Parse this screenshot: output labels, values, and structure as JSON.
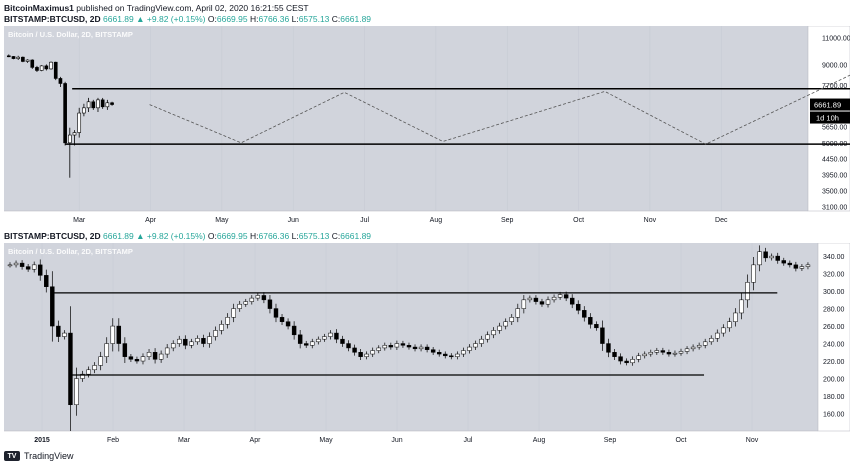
{
  "header": {
    "publisher_line": {
      "author": "BitcoinMaximus1",
      "text": "published on TradingView.com, April 02, 2020 16:21:55 CEST"
    },
    "quote_line": {
      "symbol": "BITSTAMP:BTCUSD, 2D",
      "price": "6661.89",
      "change": "▲ +9.82 (+0.15%)",
      "o_label": "O:",
      "o": "6669.95",
      "h_label": "H:",
      "h": "6766.36",
      "l_label": "L:",
      "l": "6575.13",
      "c_label": "C:",
      "c": "6661.89"
    }
  },
  "panel2_header": {
    "symbol": "BITSTAMP:BTCUSD, 2D",
    "price": "6661.89",
    "change": "▲ +9.82 (+0.15%)",
    "o_label": "O:",
    "o": "6669.95",
    "h_label": "H:",
    "h": "6766.36",
    "l_label": "L:",
    "l": "6575.13",
    "c_label": "C:",
    "c": "6661.89"
  },
  "footer": {
    "brand": "TradingView"
  },
  "colors": {
    "pane_bg": "#d1d4dc",
    "axis_bg": "#ffffff",
    "candle_up": "#ffffff",
    "candle_down": "#000000",
    "grid": "#c2c6cf"
  },
  "chart_data": [
    {
      "type": "candlestick",
      "title": "Bitcoin / U.S. Dollar, 2D, BITSTAMP",
      "y_ticks": [
        "11000.00",
        "9000.00",
        "7700.00",
        "6661.89",
        "5650.00",
        "5000.00",
        "4450.00",
        "3950.00",
        "3500.00",
        "3100.00"
      ],
      "x_ticks": [
        "Mar",
        "Apr",
        "May",
        "Jun",
        "Jul",
        "Aug",
        "Sep",
        "Oct",
        "Nov",
        "Dec"
      ],
      "price_label": "6661.89",
      "countdown_label": "1d 10h",
      "y_scale": "log",
      "ylim": [
        3000,
        12000
      ],
      "candles": [
        [
          9600,
          9700,
          9500,
          9550
        ],
        [
          9550,
          9580,
          9350,
          9400
        ],
        [
          9400,
          9600,
          9300,
          9500
        ],
        [
          9500,
          9550,
          9150,
          9200
        ],
        [
          9200,
          9350,
          9100,
          9300
        ],
        [
          9300,
          9350,
          8700,
          8800
        ],
        [
          8800,
          8900,
          8500,
          8600
        ],
        [
          8600,
          8950,
          8550,
          8900
        ],
        [
          8900,
          9000,
          8600,
          8700
        ],
        [
          8700,
          9200,
          8650,
          9150
        ],
        [
          9150,
          9180,
          8000,
          8100
        ],
        [
          8100,
          8200,
          7600,
          7800
        ],
        [
          7800,
          7900,
          4900,
          5000
        ],
        [
          5000,
          5600,
          3850,
          5300
        ],
        [
          5300,
          5500,
          4900,
          5400
        ],
        [
          5400,
          6500,
          5200,
          6250
        ],
        [
          6250,
          6700,
          6100,
          6500
        ],
        [
          6500,
          7000,
          6300,
          6800
        ],
        [
          6800,
          6900,
          6400,
          6500
        ],
        [
          6500,
          7000,
          6300,
          6900
        ],
        [
          6900,
          7000,
          6450,
          6550
        ],
        [
          6550,
          6900,
          6400,
          6750
        ],
        [
          6750,
          6800,
          6600,
          6662
        ]
      ],
      "x_range_days": [
        0,
        300
      ],
      "candle_start_day": -15,
      "candle_step_days": 2,
      "annotations": {
        "resistance": 7500,
        "support": 4950,
        "dashed_path": [
          {
            "day": 45,
            "price": 6660
          },
          {
            "day": 84,
            "price": 5000
          },
          {
            "day": 128,
            "price": 7300
          },
          {
            "day": 170,
            "price": 5050
          },
          {
            "day": 239,
            "price": 7350
          },
          {
            "day": 282,
            "price": 4950
          },
          {
            "day": 368,
            "price": 10200
          }
        ]
      }
    },
    {
      "type": "candlestick",
      "title": "Bitcoin / U.S. Dollar, 2D, BITSTAMP",
      "y_ticks": [
        "340.00",
        "320.00",
        "300.00",
        "280.00",
        "260.00",
        "240.00",
        "220.00",
        "200.00",
        "180.00",
        "160.00"
      ],
      "x_ticks": [
        "2015",
        "Feb",
        "Mar",
        "Apr",
        "May",
        "Jun",
        "Jul",
        "Aug",
        "Sep",
        "Oct",
        "Nov"
      ],
      "ylim": [
        140,
        355
      ],
      "annotations": {
        "resistance": 298,
        "support": 204,
        "resistance_range": [
          0.06,
          0.95
        ],
        "support_range": [
          0.08,
          0.86
        ]
      },
      "closes": [
        330,
        332,
        328,
        325,
        330,
        318,
        305,
        260,
        248,
        252,
        170,
        200,
        205,
        210,
        215,
        225,
        240,
        260,
        240,
        225,
        222,
        220,
        225,
        230,
        222,
        228,
        235,
        240,
        245,
        238,
        242,
        246,
        240,
        248,
        255,
        262,
        270,
        280,
        285,
        288,
        292,
        295,
        290,
        280,
        270,
        265,
        260,
        250,
        240,
        238,
        242,
        245,
        248,
        252,
        245,
        240,
        235,
        230,
        225,
        228,
        232,
        235,
        238,
        236,
        240,
        238,
        236,
        234,
        236,
        233,
        230,
        228,
        226,
        225,
        228,
        232,
        236,
        240,
        245,
        250,
        255,
        260,
        265,
        270,
        280,
        290,
        292,
        288,
        285,
        290,
        293,
        296,
        292,
        285,
        278,
        270,
        262,
        258,
        240,
        230,
        225,
        220,
        218,
        222,
        226,
        228,
        230,
        232,
        230,
        228,
        229,
        231,
        234,
        236,
        238,
        242,
        246,
        252,
        258,
        265,
        275,
        290,
        310,
        330,
        345,
        338,
        340,
        335,
        332,
        330,
        326,
        328,
        330
      ]
    }
  ]
}
